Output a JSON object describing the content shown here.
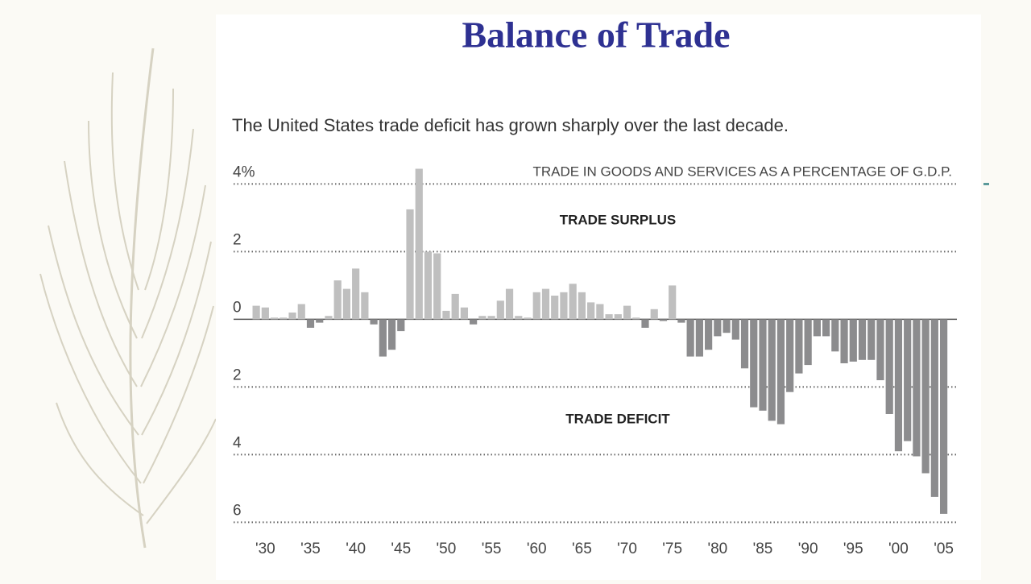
{
  "chart_data": {
    "type": "bar",
    "title": "Balance of Trade",
    "subtitle": "The United States trade deficit has grown sharply over the last decade.",
    "annotations": [
      "TRADE IN GOODS AND SERVICES AS A PERCENTAGE OF G.D.P.",
      "TRADE SURPLUS",
      "TRADE DEFICIT"
    ],
    "categories": [
      null,
      "'30",
      null,
      null,
      null,
      null,
      "'35",
      null,
      null,
      null,
      null,
      "'40",
      null,
      null,
      null,
      null,
      "'45",
      null,
      null,
      null,
      null,
      "'50",
      null,
      null,
      null,
      null,
      "'55",
      null,
      null,
      null,
      null,
      "'60",
      null,
      null,
      null,
      null,
      "'65",
      null,
      null,
      null,
      null,
      "'70",
      null,
      null,
      null,
      null,
      "'75",
      null,
      null,
      null,
      null,
      "'80",
      null,
      null,
      null,
      null,
      "'85",
      null,
      null,
      null,
      null,
      "'90",
      null,
      null,
      null,
      null,
      "'95",
      null,
      null,
      null,
      null,
      "'00",
      null,
      null,
      null,
      null,
      "'05"
    ],
    "values": [
      0.4,
      0.35,
      0.05,
      0.05,
      0.2,
      0.45,
      -0.25,
      -0.1,
      0.1,
      1.15,
      0.9,
      1.5,
      0.8,
      -0.15,
      -1.1,
      -0.9,
      -0.35,
      3.25,
      4.45,
      2.0,
      1.95,
      0.25,
      0.75,
      0.35,
      -0.15,
      0.1,
      0.1,
      0.55,
      0.9,
      0.1,
      0.05,
      0.8,
      0.9,
      0.7,
      0.8,
      1.05,
      0.8,
      0.5,
      0.45,
      0.15,
      0.15,
      0.4,
      0.05,
      -0.25,
      0.3,
      -0.05,
      1.0,
      -0.1,
      -1.1,
      -1.1,
      -0.9,
      -0.5,
      -0.4,
      -0.6,
      -1.45,
      -2.6,
      -2.7,
      -3.0,
      -3.1,
      -2.15,
      -1.6,
      -1.35,
      -0.5,
      -0.5,
      -0.95,
      -1.3,
      -1.25,
      -1.2,
      -1.2,
      -1.8,
      -2.8,
      -3.9,
      -3.6,
      -4.05,
      -4.55,
      -5.25,
      -5.75
    ],
    "positive_color": "#bfbfbf",
    "negative_color": "#8c8c8e",
    "ylim": [
      -6.2,
      4.6
    ],
    "yticks": [
      {
        "value": 4,
        "label": "4%"
      },
      2,
      0,
      {
        "value": -2,
        "label": "2"
      },
      {
        "value": -4,
        "label": "4"
      },
      {
        "value": -6,
        "label": "6"
      }
    ],
    "grid": true
  }
}
